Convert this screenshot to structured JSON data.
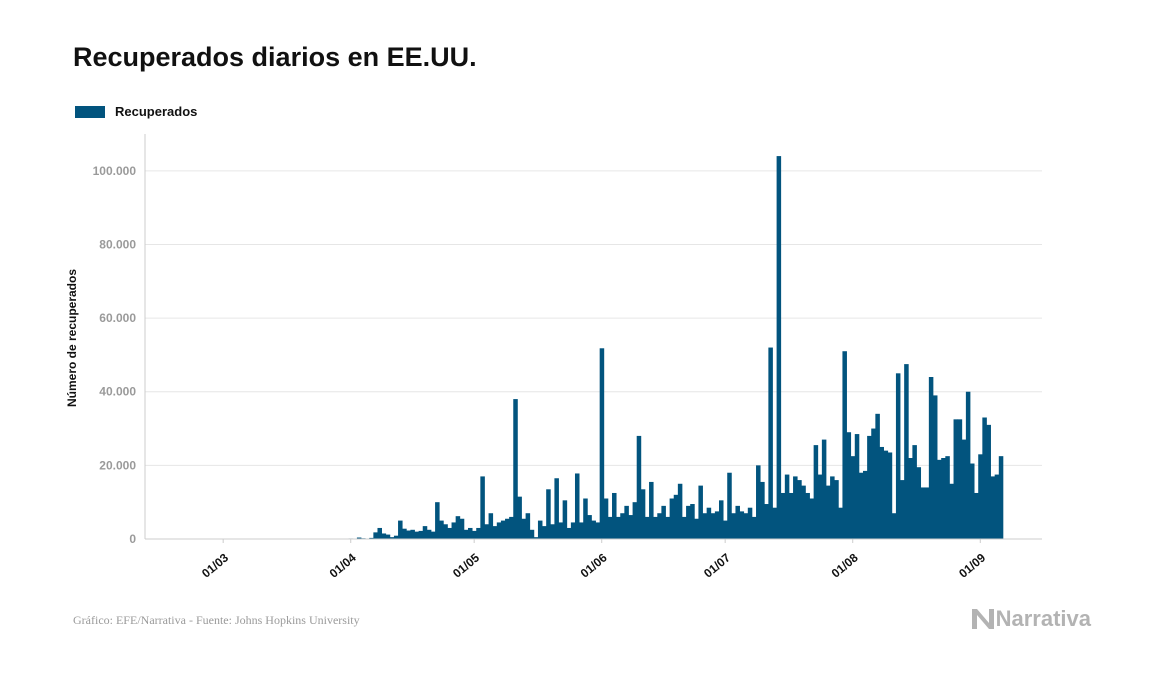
{
  "colors": {
    "bar": "#02547e",
    "grid": "#e6e6e6",
    "axis": "#cccccc",
    "tick": "#9a9a9a",
    "text": "#111111"
  },
  "brand": {
    "name": "Narrativa",
    "icon": "narrativa-n-icon"
  },
  "source": "Gráfico: EFE/Narrativa - Fuente: Johns Hopkins University",
  "chart_data": {
    "type": "bar",
    "title": "Recuperados diarios en EE.UU.",
    "ylabel": "Número de recuperados",
    "xlabel": "",
    "legend": "top-left",
    "grid": true,
    "ylim": [
      0,
      110000
    ],
    "yticks": [
      0,
      20000,
      40000,
      60000,
      80000,
      100000
    ],
    "ytick_labels": [
      "0",
      "20.000",
      "40.000",
      "60.000",
      "80.000",
      "100.000"
    ],
    "xticks": [
      {
        "date": "2020-03-01",
        "label": "01/03"
      },
      {
        "date": "2020-04-01",
        "label": "01/04"
      },
      {
        "date": "2020-05-01",
        "label": "01/05"
      },
      {
        "date": "2020-06-01",
        "label": "01/06"
      },
      {
        "date": "2020-07-01",
        "label": "01/07"
      },
      {
        "date": "2020-08-01",
        "label": "01/08"
      },
      {
        "date": "2020-09-01",
        "label": "01/09"
      }
    ],
    "xlim": [
      "2020-02-11",
      "2020-09-16"
    ],
    "series": [
      {
        "name": "Recuperados",
        "start_date": "2020-02-22",
        "values": [
          0,
          0,
          0,
          0,
          0,
          0,
          0,
          0,
          0,
          0,
          0,
          0,
          0,
          0,
          0,
          0,
          0,
          0,
          0,
          0,
          0,
          0,
          0,
          0,
          0,
          0,
          0,
          0,
          0,
          0,
          0,
          0,
          0,
          0,
          0,
          0,
          0,
          0,
          100,
          150,
          100,
          400,
          200,
          100,
          300,
          1800,
          3000,
          1500,
          1200,
          500,
          900,
          5000,
          2800,
          2300,
          2500,
          2000,
          2200,
          3500,
          2500,
          2000,
          10000,
          5000,
          4000,
          3000,
          4500,
          6200,
          5500,
          2500,
          3000,
          2200,
          3000,
          17000,
          4000,
          7000,
          3500,
          4500,
          5000,
          5500,
          6000,
          38000,
          11500,
          5500,
          7000,
          2500,
          500,
          5000,
          3500,
          13500,
          4000,
          16500,
          4500,
          10500,
          3000,
          4500,
          17800,
          4500,
          11000,
          6500,
          5000,
          4500,
          51800,
          11000,
          6000,
          12500,
          6000,
          7000,
          9000,
          6500,
          10000,
          28000,
          13500,
          6000,
          15500,
          6000,
          7000,
          9000,
          6000,
          11000,
          12000,
          15000,
          6000,
          9000,
          9500,
          5500,
          14500,
          7000,
          8500,
          7000,
          7500,
          10500,
          5000,
          18000,
          7000,
          9000,
          7500,
          7000,
          8500,
          6000,
          20000,
          15500,
          9500,
          52000,
          8500,
          104000,
          12500,
          17500,
          12500,
          17000,
          16000,
          14500,
          12500,
          11000,
          25500,
          17500,
          27000,
          14500,
          17000,
          16000,
          8500,
          51000,
          29000,
          22500,
          28500,
          18000,
          18500,
          28000,
          30000,
          34000,
          25000,
          24000,
          23500,
          7000,
          45000,
          16000,
          47500,
          22000,
          25500,
          19500,
          14000,
          14000,
          44000,
          39000,
          21500,
          22000,
          22500,
          15000,
          32500,
          32500,
          27000,
          40000,
          20500,
          12500,
          23000,
          33000,
          31000,
          17000,
          17500,
          22500
        ]
      }
    ]
  }
}
